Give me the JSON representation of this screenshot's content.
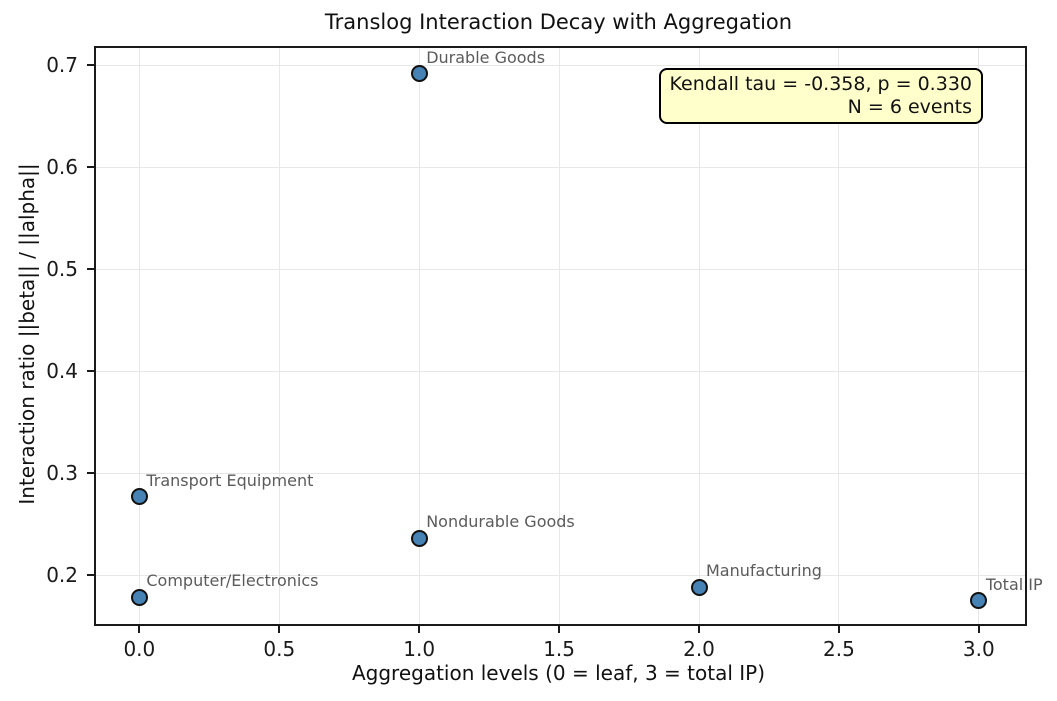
{
  "figure": {
    "title": "Translog Interaction Decay with Aggregation"
  },
  "chart_data": {
    "type": "scatter",
    "title": "Translog Interaction Decay with Aggregation",
    "xlabel": "Aggregation levels (0 = leaf, 3 = total IP)",
    "ylabel": "Interaction ratio ||beta|| / ||alpha||",
    "xlim": [
      -0.155,
      3.165
    ],
    "ylim": [
      0.152,
      0.717
    ],
    "xticks": [
      0.0,
      0.5,
      1.0,
      1.5,
      2.0,
      2.5,
      3.0
    ],
    "yticks": [
      0.2,
      0.3,
      0.4,
      0.5,
      0.6,
      0.7
    ],
    "grid": true,
    "legend": "none",
    "marker_color": "#4682B4",
    "marker_edge_color": "#111111",
    "points": [
      {
        "label": "Computer/Electronics",
        "x": 0,
        "y": 0.178
      },
      {
        "label": "Transport Equipment",
        "x": 0,
        "y": 0.277
      },
      {
        "label": "Durable Goods",
        "x": 1,
        "y": 0.692
      },
      {
        "label": "Nondurable Goods",
        "x": 1,
        "y": 0.236
      },
      {
        "label": "Manufacturing",
        "x": 2,
        "y": 0.188
      },
      {
        "label": "Total IP",
        "x": 3,
        "y": 0.175
      }
    ],
    "annotation": {
      "line1": "Kendall tau = -0.358, p = 0.330",
      "line2": "N = 6 events",
      "bg_color": "#FFFFCC",
      "border_color": "#000000"
    }
  }
}
